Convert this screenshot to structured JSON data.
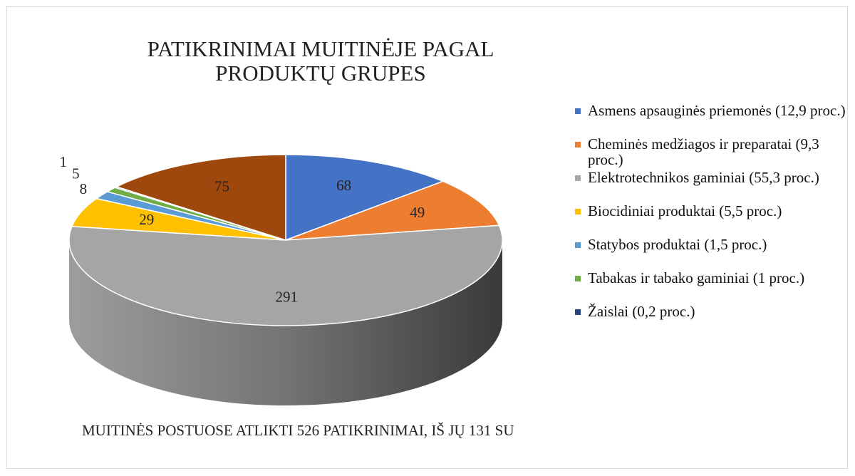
{
  "chart_data": {
    "type": "pie3d",
    "title": "PATIKRINIMAI MUITINĖJE PAGAL PRODUKTŲ GRUPES",
    "annotation": "MUITINĖS POSTUOSE ATLIKTI 526 PATIKRINIMAI, IŠ JŲ 131 SU",
    "categories": [
      "Asmens apsauginės priemonės (12,9 proc.)",
      "Cheminės medžiagos ir preparatai (9,3 proc.)",
      "Elektrotechnikos gaminiai (55,3 proc.)",
      "Biocidiniai produktai (5,5 proc.)",
      "Statybos produktai (1,5 proc.)",
      "Tabakas ir tabako gaminiai (1 proc.)",
      "Žaislai (0,2 proc.)",
      null
    ],
    "values": [
      68,
      49,
      291,
      29,
      8,
      5,
      1,
      75
    ],
    "colors": [
      "#4472c4",
      "#ed7d31",
      "#a5a5a5",
      "#ffc000",
      "#5b9bd5",
      "#70ad47",
      "#264478",
      "#9e480e"
    ],
    "legend": "right"
  }
}
